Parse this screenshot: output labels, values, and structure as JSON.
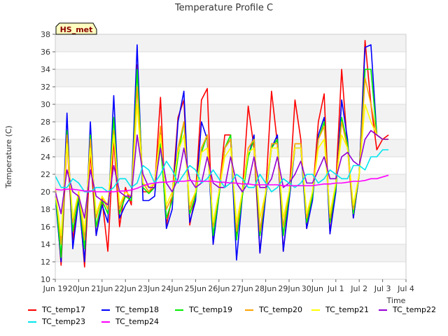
{
  "chart_data": {
    "type": "line",
    "title": "Temperature Profile C",
    "xlabel": "Time",
    "ylabel": "Temperature (C)",
    "site_badge": "HS_met",
    "ylim": [
      10,
      38
    ],
    "yticks": [
      10,
      12,
      14,
      16,
      18,
      20,
      22,
      24,
      26,
      28,
      30,
      32,
      34,
      36,
      38
    ],
    "xlim": [
      "2024-06-19",
      "2024-07-04"
    ],
    "xticks": [
      "Jun 19",
      "20Jun",
      "21Jun",
      "22Jun",
      "23Jun",
      "24Jun",
      "25Jun",
      "26Jun",
      "27Jun",
      "28Jun",
      "29Jun",
      "30Jun",
      "Jul 1",
      "Jul 2",
      "Jul 3",
      "Jul 4"
    ],
    "x_unit": "days from Jun 19",
    "grid": "horizontal bands",
    "legend_position": "bottom",
    "series_x": [
      0.0,
      0.25,
      0.5,
      0.75,
      1.0,
      1.25,
      1.5,
      1.75,
      2.0,
      2.25,
      2.5,
      2.75,
      3.0,
      3.25,
      3.5,
      3.75,
      4.0,
      4.25,
      4.5,
      4.75,
      5.0,
      5.25,
      5.5,
      5.75,
      6.0,
      6.25,
      6.5,
      6.75,
      7.0,
      7.25,
      7.5,
      7.75,
      8.0,
      8.25,
      8.5,
      8.75,
      9.0,
      9.25,
      9.5,
      9.75,
      10.0,
      10.25,
      10.5,
      10.75,
      11.0,
      11.25,
      11.5,
      11.75,
      12.0,
      12.25,
      12.5,
      12.75,
      13.0,
      13.25,
      13.5,
      13.75,
      14.0,
      14.25
    ],
    "series": [
      {
        "name": "TC_temp17",
        "color": "#ff0000",
        "values": [
          20.2,
          11.6,
          25.8,
          14.5,
          20.0,
          11.4,
          24.5,
          15.0,
          19.2,
          13.2,
          26.0,
          16.0,
          20.5,
          18.5,
          34.5,
          20.0,
          20.0,
          20.5,
          30.8,
          16.2,
          19.5,
          28.5,
          30.5,
          16.2,
          19.8,
          30.5,
          31.8,
          14.0,
          20.0,
          26.5,
          26.5,
          15.0,
          20.0,
          29.8,
          25.0,
          13.0,
          20.0,
          31.5,
          25.5,
          13.2,
          19.5,
          30.5,
          26.0,
          15.8,
          19.5,
          28.0,
          31.2,
          15.2,
          21.0,
          34.0,
          25.0,
          17.0,
          22.0,
          37.3,
          30.0,
          24.8,
          26.0,
          26.5
        ]
      },
      {
        "name": "TC_temp18",
        "color": "#0000ff",
        "values": [
          19.5,
          12.0,
          29.0,
          13.5,
          19.2,
          12.0,
          28.0,
          15.0,
          18.5,
          16.5,
          31.0,
          17.0,
          18.5,
          19.5,
          36.8,
          19.0,
          19.0,
          19.5,
          27.0,
          15.8,
          18.0,
          28.0,
          31.5,
          16.5,
          19.0,
          28.0,
          26.0,
          14.0,
          19.5,
          25.0,
          26.0,
          12.2,
          19.5,
          24.0,
          26.5,
          13.0,
          19.5,
          25.0,
          26.5,
          13.2,
          19.0,
          25.0,
          25.0,
          15.8,
          19.0,
          26.5,
          28.5,
          15.2,
          20.0,
          30.5,
          26.0,
          17.0,
          22.0,
          36.5,
          36.8,
          26.5,
          26.0,
          26.0
        ]
      },
      {
        "name": "TC_temp19",
        "color": "#00ee00",
        "values": [
          20.0,
          12.5,
          27.0,
          15.5,
          19.5,
          13.5,
          26.5,
          16.0,
          19.0,
          17.5,
          28.5,
          17.5,
          19.5,
          19.0,
          34.0,
          20.5,
          19.8,
          20.5,
          25.5,
          17.0,
          19.0,
          24.0,
          28.0,
          17.5,
          19.5,
          24.5,
          26.5,
          15.0,
          19.5,
          25.0,
          26.5,
          14.5,
          19.5,
          24.0,
          26.0,
          15.0,
          19.8,
          25.0,
          26.0,
          15.0,
          19.5,
          25.5,
          25.5,
          16.5,
          19.5,
          26.0,
          28.0,
          16.5,
          20.5,
          28.5,
          25.5,
          17.5,
          22.0,
          34.0,
          34.0,
          26.5,
          26.0,
          26.0
        ]
      },
      {
        "name": "TC_temp20",
        "color": "#ffa500",
        "values": [
          20.5,
          14.0,
          26.5,
          16.5,
          20.0,
          14.5,
          26.0,
          17.0,
          19.5,
          18.0,
          27.0,
          18.0,
          20.0,
          19.5,
          32.0,
          21.0,
          20.0,
          21.0,
          27.5,
          18.0,
          19.5,
          25.0,
          28.0,
          18.0,
          20.0,
          25.0,
          26.5,
          16.0,
          20.0,
          25.0,
          26.0,
          15.5,
          20.0,
          25.0,
          26.0,
          15.5,
          20.0,
          25.5,
          25.5,
          16.0,
          20.0,
          25.5,
          25.5,
          17.0,
          20.0,
          26.0,
          27.5,
          17.0,
          21.0,
          28.0,
          25.0,
          18.0,
          22.0,
          33.0,
          30.0,
          26.5,
          26.0,
          26.0
        ]
      },
      {
        "name": "TC_temp21",
        "color": "#ffff00",
        "values": [
          20.0,
          15.0,
          25.5,
          17.0,
          20.0,
          15.5,
          25.0,
          17.5,
          19.5,
          18.5,
          26.5,
          18.5,
          20.0,
          19.5,
          30.0,
          21.0,
          20.5,
          21.0,
          26.5,
          18.5,
          20.0,
          24.5,
          26.5,
          18.5,
          20.0,
          24.5,
          25.0,
          16.5,
          20.0,
          24.0,
          25.0,
          16.5,
          20.0,
          24.5,
          25.0,
          17.0,
          20.0,
          25.0,
          25.0,
          17.0,
          20.0,
          25.0,
          25.0,
          17.5,
          20.0,
          25.0,
          26.0,
          17.5,
          21.0,
          26.5,
          25.0,
          18.5,
          22.0,
          30.0,
          28.0,
          26.5,
          26.0,
          26.0
        ]
      },
      {
        "name": "TC_temp22",
        "color": "#9400d3",
        "values": [
          20.0,
          17.5,
          22.5,
          20.0,
          19.5,
          17.0,
          22.5,
          19.5,
          19.0,
          18.5,
          23.0,
          20.0,
          19.5,
          19.5,
          26.5,
          22.0,
          20.5,
          20.5,
          25.0,
          21.0,
          20.0,
          21.5,
          25.0,
          21.5,
          20.5,
          21.0,
          24.0,
          21.0,
          20.5,
          20.5,
          24.0,
          21.0,
          20.0,
          21.0,
          24.0,
          20.5,
          20.5,
          21.5,
          24.0,
          20.5,
          21.0,
          22.0,
          23.5,
          21.0,
          21.0,
          22.5,
          24.0,
          21.5,
          21.5,
          24.0,
          24.5,
          23.5,
          23.0,
          26.0,
          27.0,
          26.5,
          26.0,
          26.0
        ]
      },
      {
        "name": "TC_temp23",
        "color": "#00e5ee",
        "values": [
          21.8,
          20.5,
          20.5,
          21.5,
          21.0,
          20.0,
          20.0,
          20.5,
          20.5,
          20.0,
          20.5,
          21.5,
          21.5,
          20.5,
          21.0,
          23.0,
          22.5,
          21.0,
          22.0,
          23.5,
          22.5,
          21.0,
          22.0,
          23.0,
          22.5,
          21.0,
          21.5,
          22.5,
          21.5,
          20.5,
          21.0,
          22.0,
          21.5,
          20.5,
          20.5,
          22.0,
          21.0,
          20.0,
          20.5,
          21.5,
          21.0,
          20.5,
          21.0,
          22.0,
          22.0,
          21.0,
          21.5,
          22.5,
          22.0,
          21.5,
          21.5,
          23.0,
          23.0,
          22.5,
          24.0,
          24.0,
          24.8,
          24.8
        ]
      },
      {
        "name": "TC_temp24",
        "color": "#ff00ff",
        "values": [
          20.3,
          20.2,
          20.3,
          20.3,
          20.2,
          20.1,
          20.1,
          20.0,
          20.0,
          20.0,
          20.0,
          20.1,
          20.1,
          20.2,
          20.4,
          20.7,
          20.9,
          21.0,
          21.1,
          21.1,
          21.2,
          21.2,
          21.2,
          21.3,
          21.2,
          21.2,
          21.2,
          21.2,
          21.1,
          21.1,
          21.0,
          21.0,
          20.9,
          20.9,
          20.8,
          20.8,
          20.8,
          20.8,
          20.8,
          20.7,
          20.7,
          20.7,
          20.7,
          20.7,
          20.7,
          20.8,
          20.9,
          20.9,
          21.0,
          21.0,
          21.1,
          21.2,
          21.2,
          21.3,
          21.5,
          21.5,
          21.7,
          21.9
        ]
      }
    ]
  }
}
